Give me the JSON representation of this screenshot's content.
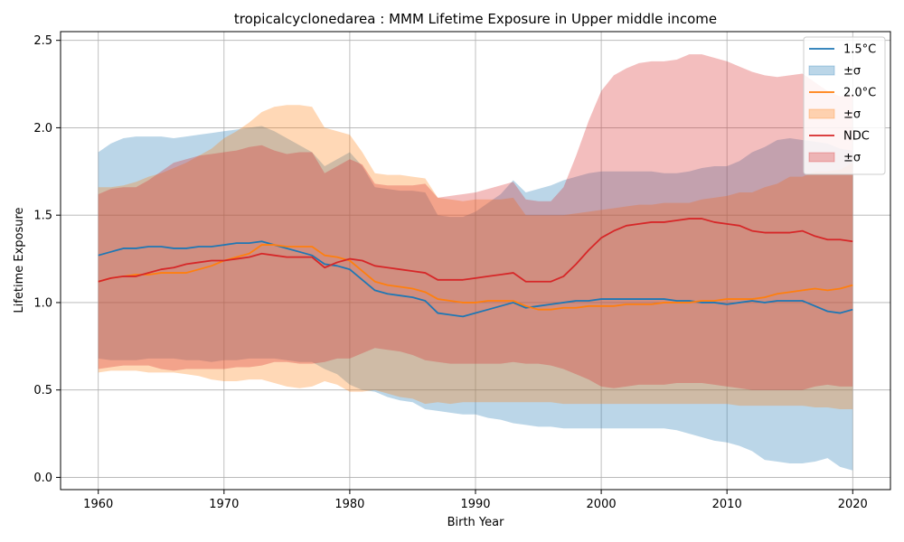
{
  "chart_data": {
    "type": "line",
    "title": "tropicalcyclonedarea : MMM Lifetime Exposure in Upper middle income",
    "xlabel": "Birth Year",
    "ylabel": "Lifetime Exposure",
    "xlim": [
      1957,
      2023
    ],
    "ylim": [
      -0.07,
      2.55
    ],
    "x_ticks": [
      1960,
      1970,
      1980,
      1990,
      2000,
      2010,
      2020
    ],
    "y_ticks": [
      0.0,
      0.5,
      1.0,
      1.5,
      2.0,
      2.5
    ],
    "grid": true,
    "legend_position": "top-right",
    "x": [
      1960,
      1961,
      1962,
      1963,
      1964,
      1965,
      1966,
      1967,
      1968,
      1969,
      1970,
      1971,
      1972,
      1973,
      1974,
      1975,
      1976,
      1977,
      1978,
      1979,
      1980,
      1981,
      1982,
      1983,
      1984,
      1985,
      1986,
      1987,
      1988,
      1989,
      1990,
      1991,
      1992,
      1993,
      1994,
      1995,
      1996,
      1997,
      1998,
      1999,
      2000,
      2001,
      2002,
      2003,
      2004,
      2005,
      2006,
      2007,
      2008,
      2009,
      2010,
      2011,
      2012,
      2013,
      2014,
      2015,
      2016,
      2017,
      2018,
      2019,
      2020
    ],
    "series": [
      {
        "name": "1.5°C",
        "band_label": "±σ",
        "color": "#1f77b4",
        "band_color": "#1f77b4",
        "values": [
          1.27,
          1.29,
          1.31,
          1.31,
          1.32,
          1.32,
          1.31,
          1.31,
          1.32,
          1.32,
          1.33,
          1.34,
          1.34,
          1.35,
          1.33,
          1.31,
          1.29,
          1.27,
          1.22,
          1.21,
          1.19,
          1.13,
          1.07,
          1.05,
          1.04,
          1.03,
          1.01,
          0.94,
          0.93,
          0.92,
          0.94,
          0.96,
          0.98,
          1.0,
          0.97,
          0.98,
          0.99,
          1.0,
          1.01,
          1.01,
          1.02,
          1.02,
          1.02,
          1.02,
          1.02,
          1.02,
          1.01,
          1.01,
          1.0,
          1.0,
          0.99,
          1.0,
          1.01,
          1.0,
          1.01,
          1.01,
          1.01,
          0.98,
          0.95,
          0.94,
          0.96
        ],
        "upper": [
          1.86,
          1.91,
          1.94,
          1.95,
          1.95,
          1.95,
          1.94,
          1.95,
          1.96,
          1.97,
          1.98,
          1.99,
          2.0,
          2.01,
          1.98,
          1.94,
          1.9,
          1.86,
          1.78,
          1.82,
          1.86,
          1.78,
          1.66,
          1.65,
          1.64,
          1.64,
          1.63,
          1.5,
          1.49,
          1.49,
          1.52,
          1.57,
          1.62,
          1.7,
          1.63,
          1.65,
          1.67,
          1.7,
          1.72,
          1.74,
          1.75,
          1.75,
          1.75,
          1.75,
          1.75,
          1.74,
          1.74,
          1.75,
          1.77,
          1.78,
          1.78,
          1.81,
          1.86,
          1.89,
          1.93,
          1.94,
          1.93,
          1.92,
          1.91,
          1.88,
          1.87
        ],
        "lower": [
          0.68,
          0.67,
          0.67,
          0.67,
          0.68,
          0.68,
          0.68,
          0.67,
          0.67,
          0.66,
          0.67,
          0.67,
          0.68,
          0.68,
          0.68,
          0.67,
          0.66,
          0.66,
          0.62,
          0.59,
          0.53,
          0.5,
          0.49,
          0.46,
          0.44,
          0.43,
          0.39,
          0.38,
          0.37,
          0.36,
          0.36,
          0.34,
          0.33,
          0.31,
          0.3,
          0.29,
          0.29,
          0.28,
          0.28,
          0.28,
          0.28,
          0.28,
          0.28,
          0.28,
          0.28,
          0.28,
          0.27,
          0.25,
          0.23,
          0.21,
          0.2,
          0.18,
          0.15,
          0.1,
          0.09,
          0.08,
          0.08,
          0.09,
          0.11,
          0.06,
          0.04
        ]
      },
      {
        "name": "2.0°C",
        "band_label": "±σ",
        "color": "#ff7f0e",
        "band_color": "#ff7f0e",
        "values": [
          1.12,
          1.14,
          1.15,
          1.16,
          1.16,
          1.17,
          1.17,
          1.17,
          1.19,
          1.21,
          1.24,
          1.26,
          1.28,
          1.33,
          1.33,
          1.32,
          1.32,
          1.32,
          1.27,
          1.26,
          1.24,
          1.18,
          1.12,
          1.1,
          1.09,
          1.08,
          1.06,
          1.02,
          1.01,
          1.0,
          1.0,
          1.01,
          1.01,
          1.01,
          0.98,
          0.96,
          0.96,
          0.97,
          0.97,
          0.98,
          0.98,
          0.98,
          0.99,
          0.99,
          0.99,
          1.0,
          1.0,
          1.0,
          1.01,
          1.01,
          1.02,
          1.02,
          1.02,
          1.03,
          1.05,
          1.06,
          1.07,
          1.08,
          1.07,
          1.08,
          1.1
        ],
        "upper": [
          1.66,
          1.66,
          1.67,
          1.69,
          1.72,
          1.74,
          1.77,
          1.8,
          1.84,
          1.88,
          1.94,
          1.98,
          2.03,
          2.09,
          2.12,
          2.13,
          2.13,
          2.12,
          2.0,
          1.98,
          1.96,
          1.86,
          1.74,
          1.73,
          1.73,
          1.72,
          1.71,
          1.6,
          1.59,
          1.58,
          1.59,
          1.59,
          1.59,
          1.6,
          1.5,
          1.5,
          1.5,
          1.5,
          1.51,
          1.52,
          1.53,
          1.54,
          1.55,
          1.56,
          1.56,
          1.57,
          1.57,
          1.57,
          1.59,
          1.6,
          1.61,
          1.63,
          1.63,
          1.66,
          1.68,
          1.72,
          1.72,
          1.75,
          1.75,
          1.76,
          1.8
        ],
        "lower": [
          0.6,
          0.61,
          0.61,
          0.61,
          0.6,
          0.6,
          0.6,
          0.59,
          0.58,
          0.56,
          0.55,
          0.55,
          0.56,
          0.56,
          0.54,
          0.52,
          0.51,
          0.52,
          0.55,
          0.53,
          0.49,
          0.49,
          0.5,
          0.48,
          0.46,
          0.45,
          0.42,
          0.43,
          0.42,
          0.43,
          0.43,
          0.43,
          0.43,
          0.43,
          0.43,
          0.43,
          0.43,
          0.42,
          0.42,
          0.42,
          0.42,
          0.42,
          0.42,
          0.42,
          0.42,
          0.42,
          0.42,
          0.42,
          0.42,
          0.42,
          0.42,
          0.41,
          0.41,
          0.41,
          0.41,
          0.41,
          0.41,
          0.4,
          0.4,
          0.39,
          0.39
        ]
      },
      {
        "name": "NDC",
        "band_label": "±σ",
        "color": "#d62728",
        "band_color": "#d62728",
        "values": [
          1.12,
          1.14,
          1.15,
          1.15,
          1.17,
          1.19,
          1.2,
          1.22,
          1.23,
          1.24,
          1.24,
          1.25,
          1.26,
          1.28,
          1.27,
          1.26,
          1.26,
          1.26,
          1.2,
          1.23,
          1.25,
          1.24,
          1.21,
          1.2,
          1.19,
          1.18,
          1.17,
          1.13,
          1.13,
          1.13,
          1.14,
          1.15,
          1.16,
          1.17,
          1.12,
          1.12,
          1.12,
          1.15,
          1.22,
          1.3,
          1.37,
          1.41,
          1.44,
          1.45,
          1.46,
          1.46,
          1.47,
          1.48,
          1.48,
          1.46,
          1.45,
          1.44,
          1.41,
          1.4,
          1.4,
          1.4,
          1.41,
          1.38,
          1.36,
          1.36,
          1.35
        ],
        "upper": [
          1.62,
          1.65,
          1.66,
          1.66,
          1.7,
          1.75,
          1.8,
          1.82,
          1.84,
          1.85,
          1.86,
          1.87,
          1.89,
          1.9,
          1.87,
          1.85,
          1.86,
          1.86,
          1.74,
          1.78,
          1.82,
          1.79,
          1.68,
          1.67,
          1.67,
          1.67,
          1.68,
          1.6,
          1.61,
          1.62,
          1.63,
          1.65,
          1.67,
          1.69,
          1.59,
          1.58,
          1.58,
          1.66,
          1.84,
          2.04,
          2.21,
          2.3,
          2.34,
          2.37,
          2.38,
          2.38,
          2.39,
          2.42,
          2.42,
          2.4,
          2.38,
          2.35,
          2.32,
          2.3,
          2.29,
          2.3,
          2.31,
          2.26,
          2.21,
          2.18,
          2.19
        ],
        "lower": [
          0.62,
          0.63,
          0.64,
          0.64,
          0.64,
          0.62,
          0.61,
          0.62,
          0.62,
          0.62,
          0.62,
          0.63,
          0.63,
          0.64,
          0.66,
          0.66,
          0.65,
          0.65,
          0.66,
          0.68,
          0.68,
          0.71,
          0.74,
          0.73,
          0.72,
          0.7,
          0.67,
          0.66,
          0.65,
          0.65,
          0.65,
          0.65,
          0.65,
          0.66,
          0.65,
          0.65,
          0.64,
          0.62,
          0.59,
          0.56,
          0.52,
          0.51,
          0.52,
          0.53,
          0.53,
          0.53,
          0.54,
          0.54,
          0.54,
          0.53,
          0.52,
          0.51,
          0.5,
          0.5,
          0.5,
          0.5,
          0.5,
          0.52,
          0.53,
          0.52,
          0.52
        ]
      }
    ]
  }
}
